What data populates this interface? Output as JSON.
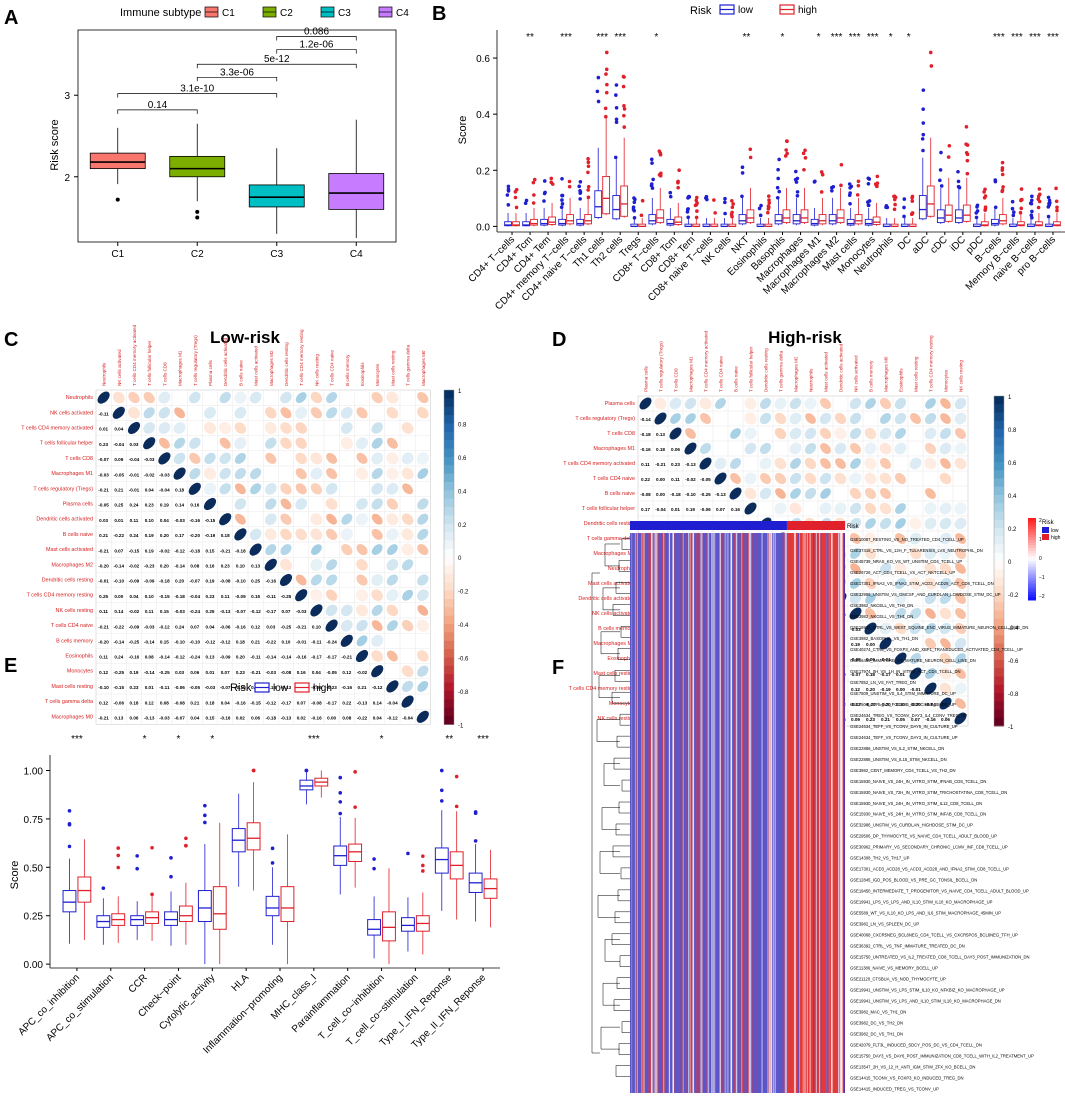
{
  "panel_labels": {
    "a": "A",
    "b": "B",
    "c": "C",
    "d": "D",
    "e": "E",
    "f": "F"
  },
  "colors": {
    "low": "#1f1fd1",
    "high": "#e0202a",
    "c1": "#f8766d",
    "c2": "#7cae00",
    "c3": "#00bfc4",
    "c4": "#c77cff"
  },
  "chart_data": [
    {
      "id": "A",
      "type": "box",
      "title": "",
      "legend_title": "Immune subtype",
      "legend_placement": "top",
      "categories": [
        "C1",
        "C2",
        "C3",
        "C4"
      ],
      "ylabel": "Risk score",
      "ylim": [
        1.2,
        3.8
      ],
      "yticks": [
        {
          "v": 2,
          "label": "2"
        },
        {
          "v": 3,
          "label": "3"
        }
      ],
      "boxes": [
        {
          "q1": 2.1,
          "med": 2.18,
          "q3": 2.29,
          "lo": 1.91,
          "hi": 2.6,
          "out": [
            1.72
          ]
        },
        {
          "q1": 2.0,
          "med": 2.1,
          "q3": 2.25,
          "lo": 1.7,
          "hi": 2.65,
          "out": [
            1.5,
            1.57
          ]
        },
        {
          "q1": 1.63,
          "med": 1.75,
          "q3": 1.9,
          "lo": 1.3,
          "hi": 2.35,
          "out": []
        },
        {
          "q1": 1.6,
          "med": 1.8,
          "q3": 2.04,
          "lo": 1.25,
          "hi": 2.7,
          "out": []
        }
      ],
      "comparisons": [
        {
          "from": 0,
          "to": 1,
          "label": "0.14",
          "y": 2.82
        },
        {
          "from": 0,
          "to": 2,
          "label": "3.1e-10",
          "y": 3.02
        },
        {
          "from": 1,
          "to": 2,
          "label": "3.3e-06",
          "y": 3.22
        },
        {
          "from": 1,
          "to": 3,
          "label": "5e-12",
          "y": 3.38
        },
        {
          "from": 2,
          "to": 3,
          "label": "1.2e-06",
          "y": 3.56
        },
        {
          "from": 2,
          "to": 3,
          "label": "0.086",
          "y": 3.72
        }
      ]
    },
    {
      "id": "B",
      "type": "grouped_box",
      "legend_title": "Risk",
      "legend_labels": [
        "low",
        "high"
      ],
      "ylabel": "Score",
      "ylim": [
        -0.02,
        0.7
      ],
      "yticks": [
        {
          "v": 0,
          "label": "0.0"
        },
        {
          "v": 0.2,
          "label": "0.2"
        },
        {
          "v": 0.4,
          "label": "0.4"
        },
        {
          "v": 0.6,
          "label": "0.6"
        }
      ],
      "categories": [
        "CD4+ T−cells",
        "CD4+ Tcm",
        "CD4+ Tem",
        "CD4+ memory T−cells",
        "CD4+ naive T−cells",
        "Th1 cells",
        "Th2 cells",
        "Tregs",
        "CD8+ T−cells",
        "CD8+ Tcm",
        "CD8+ Tem",
        "CD8+ naive T−cells",
        "NK cells",
        "NKT",
        "Eosinophils",
        "Basophils",
        "Macrophages",
        "Macrophages M1",
        "Macrophages M2",
        "Mast cells",
        "Monocytes",
        "Neutrophils",
        "DC",
        "aDC",
        "cDC",
        "iDC",
        "pDC",
        "B−cells",
        "Memory B−cells",
        "naive B−cells",
        "pro B−cells"
      ],
      "low_median": [
        0.005,
        0.005,
        0.01,
        0.01,
        0.01,
        0.07,
        0.06,
        0.0,
        0.02,
        0.01,
        0.0,
        0.0,
        0.0,
        0.02,
        0.0,
        0.02,
        0.02,
        0.01,
        0.02,
        0.01,
        0.01,
        0.0,
        0.0,
        0.06,
        0.03,
        0.03,
        0.0,
        0.01,
        0.0,
        0.0,
        0.0
      ],
      "high_median": [
        0.005,
        0.01,
        0.015,
        0.02,
        0.02,
        0.1,
        0.08,
        0.0,
        0.03,
        0.015,
        0.0,
        0.0,
        0.0,
        0.03,
        0.0,
        0.03,
        0.03,
        0.02,
        0.03,
        0.02,
        0.015,
        0.0,
        0.0,
        0.08,
        0.04,
        0.04,
        0.005,
        0.02,
        0.005,
        0.005,
        0.005
      ],
      "significance": [
        "",
        "**",
        "",
        "***",
        "",
        "***",
        "***",
        "",
        "*",
        "",
        "",
        "",
        "",
        "**",
        "",
        "*",
        "",
        "*",
        "***",
        "***",
        "***",
        "*",
        "*",
        "",
        "",
        "",
        "",
        "***",
        "***",
        "***",
        "***"
      ]
    },
    {
      "id": "C",
      "type": "correlation_matrix",
      "title": "Low-risk",
      "labels": [
        "Neutrophils",
        "NK cells activated",
        "T cells CD4 memory activated",
        "T cells follicular helper",
        "T cells CD8",
        "Macrophages M1",
        "T cells regulatory (Tregs)",
        "Plasma cells",
        "Dendritic cells activated",
        "B cells naive",
        "Mast cells activated",
        "Macrophages M2",
        "Dendritic cells resting",
        "T cells CD4 memory resting",
        "NK cells resting",
        "T cells CD4 naive",
        "B cells memory",
        "Eosinophils",
        "Monocytes",
        "Mast cells resting",
        "T cells gamma delta",
        "Macrophages M0"
      ],
      "colorbar_ticks": [
        "1",
        "0.8",
        "0.6",
        "0.4",
        "0.2",
        "0",
        "-0.2",
        "-0.4",
        "-0.6",
        "-0.8",
        "-1"
      ]
    },
    {
      "id": "D",
      "type": "correlation_matrix",
      "title": "High-risk",
      "labels": [
        "Plasma cells",
        "T cells regulatory (Tregs)",
        "T cells CD8",
        "Macrophages M1",
        "T cells CD4 memory activated",
        "T cells CD4 naive",
        "B cells naive",
        "T cells follicular helper",
        "Dendritic cells resting",
        "T cells gamma delta",
        "Macrophages M2",
        "Neutrophils",
        "Mast cells activated",
        "Dendritic cells activated",
        "NK cells activated",
        "B cells memory",
        "Macrophages M0",
        "Eosinophils",
        "Mast cells resting",
        "T cells CD4 memory resting",
        "Monocytes",
        "NK cells resting"
      ],
      "colorbar_ticks": [
        "1",
        "0.8",
        "0.6",
        "0.4",
        "0.2",
        "0",
        "-0.2",
        "-0.4",
        "-0.6",
        "-0.8",
        "-1"
      ]
    },
    {
      "id": "E",
      "type": "grouped_box",
      "legend_title": "Risk",
      "legend_labels": [
        "low",
        "high"
      ],
      "ylabel": "Score",
      "ylim": [
        -0.02,
        1.08
      ],
      "yticks": [
        {
          "v": 0,
          "label": "0.00"
        },
        {
          "v": 0.25,
          "label": "0.25"
        },
        {
          "v": 0.5,
          "label": "0.50"
        },
        {
          "v": 0.75,
          "label": "0.75"
        },
        {
          "v": 1,
          "label": "1.00"
        }
      ],
      "categories": [
        "APC_co_inhibition",
        "APC_co_stimulation",
        "CCR",
        "Check−point",
        "Cytolytic_activity",
        "HLA",
        "Inflammation−promoting",
        "MHC_class_I",
        "Parainflammation",
        "T_cell_co−inhibition",
        "T_cell_co−stimulation",
        "Type_I_IFN_Reponse",
        "Type_II_IFN_Reponse"
      ],
      "low_box": [
        [
          0.27,
          0.32,
          0.38
        ],
        [
          0.19,
          0.22,
          0.25
        ],
        [
          0.2,
          0.23,
          0.25
        ],
        [
          0.2,
          0.23,
          0.27
        ],
        [
          0.22,
          0.29,
          0.38
        ],
        [
          0.58,
          0.64,
          0.7
        ],
        [
          0.25,
          0.29,
          0.35
        ],
        [
          0.9,
          0.92,
          0.95
        ],
        [
          0.51,
          0.56,
          0.61
        ],
        [
          0.15,
          0.18,
          0.23
        ],
        [
          0.17,
          0.2,
          0.24
        ],
        [
          0.47,
          0.54,
          0.6
        ],
        [
          0.37,
          0.42,
          0.47
        ]
      ],
      "high_box": [
        [
          0.32,
          0.38,
          0.45
        ],
        [
          0.2,
          0.23,
          0.26
        ],
        [
          0.21,
          0.24,
          0.27
        ],
        [
          0.22,
          0.25,
          0.3
        ],
        [
          0.18,
          0.26,
          0.4
        ],
        [
          0.59,
          0.65,
          0.73
        ],
        [
          0.22,
          0.29,
          0.4
        ],
        [
          0.92,
          0.94,
          0.96
        ],
        [
          0.53,
          0.58,
          0.62
        ],
        [
          0.12,
          0.19,
          0.27
        ],
        [
          0.17,
          0.21,
          0.25
        ],
        [
          0.44,
          0.51,
          0.58
        ],
        [
          0.34,
          0.39,
          0.44
        ]
      ],
      "significance": [
        "***",
        "",
        "*",
        "*",
        "*",
        "",
        "",
        "***",
        "",
        "*",
        "",
        "**",
        "***"
      ]
    },
    {
      "id": "F",
      "type": "heatmap",
      "annotation_label": "Risk",
      "legend_title": "Risk",
      "legend_labels": [
        "low",
        "high"
      ],
      "colorbar_ticks": [
        "2",
        "1",
        "0",
        "−1",
        "−2"
      ],
      "low_fraction": 0.73,
      "rows": [
        "GSE10087_RESTING_VS_NO_TREATED_CD4_TCELL_UP",
        "GSE37416_CTRL_VS_12H_F_TULARENSIS_LVS_NEUTROPHIL_DN",
        "GSE45739_NRAS_KO_VS_WT_UNSTIM_CD4_TCELL_UP",
        "GSE26726_ACT_CD4_TCELL_VS_ACT_NKTCELL_UP",
        "GSE17301_IFNA2_VS_IFNA2_STIM_ACD3_ACD28_ACT_CD8_TCELL_DN",
        "GSE32986_UNSTIM_VS_GMCSF_AND_CURDLAN_LOWDOSE_STIM_DC_UP",
        "GSE3982_NKCELL_VS_TH0_DN",
        "GSE3982_NKCELL_VS_TH1_DN",
        "GSE16971_CTRL_VS_WEST_EQUINE_ENC_VIRUS_IMMATURE_NEURON_CELL_LINE_DN",
        "GSE3982_BASOPHIL_VS_TH1_DN",
        "GSE40274_CTRL_VS_FOXP3_AND_XBP1_TRANSDUCED_ACTIVATED_CD4_TCELL_UP",
        "GSE16450_IMMATURE_VS_MATURE_NEURON_CELL_LINE_DN",
        "GSE17974_0H_VS_1H_IN_VITRO_ACT_CD4_TCELL_DN",
        "GSE7852_LN_VS_FAT_TREG_DN",
        "GSE7509_UNSTIM_VS_IL4_STIM_IMMATURE_DC_UP",
        "GSE7509_CTRL_VS_FCGRIIB_DEFICIENT_BMDC_UP",
        "GSE24634_TREG_VS_TCONV_DAY3_IL4_CONV_TREG_UP",
        "GSE24634_TEFF_VS_TCONV_DAY5_IN_CULTURE_UP",
        "GSE24634_TEFF_VS_TCONV_DAY3_IN_CULTURE_UP",
        "GSE22886_UNSTIM_VS_IL2_STIM_NKCELL_DN",
        "GSE22886_UNSTIM_VS_IL15_STIM_NKCELL_DN",
        "GSE3982_CENT_MEMORY_CD4_TCELL_VS_TH2_DN",
        "GSE15930_NAIVE_VS_24H_IN_VITRO_STIM_IFNAB_CD8_TCELL_DN",
        "GSE15930_NAIVE_VS_72H_IN_VITRO_STIM_TRICHOSTATINA_CD8_TCELL_DN",
        "GSE15930_NAIVE_VS_24H_IN_VITRO_STIM_IL12_CD8_TCELL_DN",
        "GSE15930_NAIVE_VS_24H_IN_VITRO_STIM_INFAB_CD8_TCELL_DN",
        "GSE32986_UNSTIM_VS_CURDLAN_HIGHDOSE_STIM_DC_UP",
        "GSE29506_DP_THYMOCYTE_VS_NAIVE_CD4_TCELL_ADULT_BLOOD_UP",
        "GSE30962_PRIMARY_VS_SECONDARY_CHRONIC_LCMV_INF_CD8_TCELL_UP",
        "GSE14308_TH2_VS_TH17_UP",
        "GSE17301_ACD3_ACD28_VS_ACD3_ACD28_AND_IFNA2_STIM_CD8_TCELL_UP",
        "GSE12845_IGD_POS_BLOOD_VS_PRE_GC_TONSIL_BCELL_DN",
        "GSE19450_INTERMEDIATE_T_PROGENITOR_VS_NAIVE_CD4_TCELL_ADULT_BLOOD_UP",
        "GSE19941_LPS_VS_LPS_AND_IL10_STIM_IL10_KO_MACROPHAGE_UP",
        "GSE5589_WT_VS_IL10_KO_LPS_AND_IL6_STIM_MACROPHAGE_45MIN_UP",
        "GSE3982_LN_VS_SPLEEN_DC_UP",
        "GSE40068_CXCR5NEG_BCL6NEG_CD4_TCELL_VS_CXCR5POS_BCL6NEG_TFH_UP",
        "GSE36392_CTRL_VS_TNF_IMMATURE_TREATED_DC_DN",
        "GSE15750_UNTREATED_VS_IL2_TREATED_CD8_TCELL_DAY3_POST_IMMUNIZATION_DN",
        "GSE11386_NAIVE_VS_MEMORY_BCELL_UP",
        "GSE21120_CTSBUA_VS_NOD_THYMOCYTE_UP",
        "GSE19941_UNSTIM_VS_LPS_STIM_IL10_KO_NFKBIZ_KO_MACROPHAGE_UP",
        "GSE19941_UNSTIM_VS_LPS_AND_IL10_STIM_IL10_KO_MACROPHAGE_DN",
        "GSE3982_MAC_VS_TH1_DN",
        "GSE3982_DC_VS_TH2_DN",
        "GSE3982_DC_VS_TH1_DN",
        "GSE42079_FLT3L_INDUCED_SDCY_POS_DC_VS_CD4_TCELL_DN",
        "GSE15750_DAY3_VS_DAY6_POST_IMMUNIZATION_CD8_TCELL_WITH_IL2_TREATMENT_UP",
        "GSE13547_2H_VS_12_H_ANTI_IGM_STIM_ZFX_KO_BCELL_DN",
        "GSE14415_TCONV_VS_FOXP3_KO_INDUCED_TREG_DN",
        "GSE14415_INDUCED_TREG_VS_TCONV_UP"
      ]
    }
  ]
}
